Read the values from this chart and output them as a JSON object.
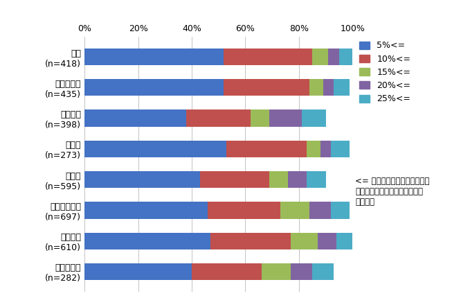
{
  "categories": [
    "食品\n(n=418)",
    "飲料・酒類\n(n=435)",
    "アパレル\n(n=398)",
    "日用品\n(n=273)",
    "自動車\n(n=595)",
    "デジタル家電\n(n=697)",
    "白物家電\n(n=610)",
    "家具・寝具\n(n=282)"
  ],
  "series": {
    "5%<=": [
      52,
      52,
      38,
      53,
      43,
      46,
      47,
      40
    ],
    "10%<=": [
      33,
      32,
      24,
      30,
      26,
      27,
      30,
      26
    ],
    "15%<=": [
      6,
      5,
      7,
      5,
      7,
      11,
      10,
      11
    ],
    "20%<=": [
      4,
      4,
      12,
      4,
      7,
      8,
      7,
      8
    ],
    "25%<=": [
      5,
      6,
      9,
      7,
      7,
      7,
      6,
      8
    ]
  },
  "colors": {
    "5%<=": "#4472C4",
    "10%<=": "#C0504D",
    "15%<=": "#9BBB59",
    "20%<=": "#8064A2",
    "25%<=": "#4BACC6"
  },
  "legend_order": [
    "5%<=",
    "10%<=",
    "15%<=",
    "20%<=",
    "25%<="
  ],
  "note": "<= は、当該数値まで高くても\n気に入っているブランドを購入\nする意味",
  "xlim": [
    0,
    100
  ],
  "xticks": [
    0,
    20,
    40,
    60,
    80,
    100
  ],
  "bar_height": 0.55,
  "figsize": [
    6.79,
    4.43
  ],
  "dpi": 100,
  "background_color": "#FFFFFF"
}
